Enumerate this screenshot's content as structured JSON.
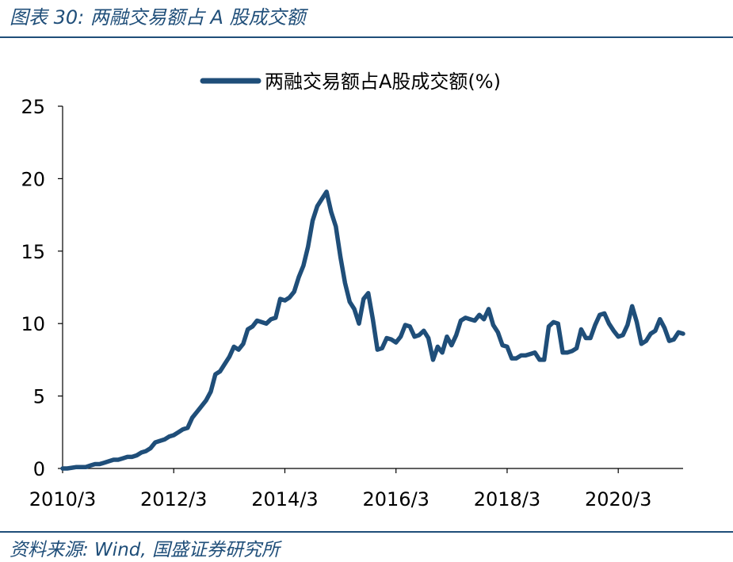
{
  "figure": {
    "title": "图表 30:  两融交易额占 A 股成交额",
    "source": "资料来源:  Wind,  国盛证券研究所"
  },
  "colors": {
    "line": "#1F4E79",
    "accent": "#1F4E79"
  },
  "chart_data": {
    "type": "line",
    "title": "",
    "xlabel": "",
    "ylabel": "",
    "legend_position": "top",
    "grid": false,
    "ylim": [
      0,
      25
    ],
    "yticks": [
      "0",
      "5",
      "10",
      "15",
      "20",
      "25"
    ],
    "xticks": [
      "2010/3",
      "2012/3",
      "2014/3",
      "2016/3",
      "2018/3",
      "2020/3"
    ],
    "series": [
      {
        "name": "两融交易额占A股成交额(%)",
        "x": [
          "2010/3",
          "2010/4",
          "2010/5",
          "2010/6",
          "2010/7",
          "2010/8",
          "2010/9",
          "2010/10",
          "2010/11",
          "2010/12",
          "2011/1",
          "2011/2",
          "2011/3",
          "2011/4",
          "2011/5",
          "2011/6",
          "2011/7",
          "2011/8",
          "2011/9",
          "2011/10",
          "2011/11",
          "2011/12",
          "2012/1",
          "2012/2",
          "2012/3",
          "2012/4",
          "2012/5",
          "2012/6",
          "2012/7",
          "2012/8",
          "2012/9",
          "2012/10",
          "2012/11",
          "2012/12",
          "2013/1",
          "2013/2",
          "2013/3",
          "2013/4",
          "2013/5",
          "2013/6",
          "2013/7",
          "2013/8",
          "2013/9",
          "2013/10",
          "2013/11",
          "2013/12",
          "2014/1",
          "2014/2",
          "2014/3",
          "2014/4",
          "2014/5",
          "2014/6",
          "2014/7",
          "2014/8",
          "2014/9",
          "2014/10",
          "2014/11",
          "2014/12",
          "2015/1",
          "2015/2",
          "2015/3",
          "2015/4",
          "2015/5",
          "2015/6",
          "2015/7",
          "2015/8",
          "2015/9",
          "2015/10",
          "2015/11",
          "2015/12",
          "2016/1",
          "2016/2",
          "2016/3",
          "2016/4",
          "2016/5",
          "2016/6",
          "2016/7",
          "2016/8",
          "2016/9",
          "2016/10",
          "2016/11",
          "2016/12",
          "2017/1",
          "2017/2",
          "2017/3",
          "2017/4",
          "2017/5",
          "2017/6",
          "2017/7",
          "2017/8",
          "2017/9",
          "2017/10",
          "2017/11",
          "2017/12",
          "2018/1",
          "2018/2",
          "2018/3",
          "2018/4",
          "2018/5",
          "2018/6",
          "2018/7",
          "2018/8",
          "2018/9",
          "2018/10",
          "2018/11",
          "2018/12",
          "2019/1",
          "2019/2",
          "2019/3",
          "2019/4",
          "2019/5",
          "2019/6",
          "2019/7",
          "2019/8",
          "2019/9",
          "2019/10",
          "2019/11",
          "2019/12",
          "2020/1",
          "2020/2",
          "2020/3",
          "2020/4",
          "2020/5",
          "2020/6",
          "2020/7",
          "2020/8",
          "2020/9",
          "2020/10",
          "2020/11",
          "2020/12",
          "2021/1",
          "2021/2",
          "2021/3",
          "2021/4",
          "2021/5"
        ],
        "values": [
          0.0,
          0.0,
          0.05,
          0.1,
          0.1,
          0.1,
          0.2,
          0.3,
          0.3,
          0.4,
          0.5,
          0.6,
          0.6,
          0.7,
          0.8,
          0.8,
          0.9,
          1.1,
          1.2,
          1.4,
          1.8,
          1.9,
          2.0,
          2.2,
          2.3,
          2.5,
          2.7,
          2.8,
          3.5,
          3.9,
          4.3,
          4.7,
          5.3,
          6.5,
          6.7,
          7.2,
          7.7,
          8.4,
          8.2,
          8.6,
          9.6,
          9.8,
          10.2,
          10.1,
          10.0,
          10.3,
          10.4,
          11.7,
          11.6,
          11.8,
          12.2,
          13.2,
          14.0,
          15.3,
          17.1,
          18.1,
          18.6,
          19.1,
          17.7,
          16.7,
          14.6,
          12.8,
          11.5,
          11.0,
          10.0,
          11.7,
          12.1,
          10.3,
          8.2,
          8.3,
          9.0,
          8.9,
          8.7,
          9.1,
          9.9,
          9.8,
          9.1,
          9.2,
          9.5,
          9.0,
          7.5,
          8.4,
          8.0,
          9.1,
          8.5,
          9.2,
          10.2,
          10.4,
          10.3,
          10.2,
          10.6,
          10.3,
          11.0,
          9.9,
          9.4,
          8.5,
          8.4,
          7.6,
          7.6,
          7.8,
          7.8,
          7.9,
          8.0,
          7.5,
          7.5,
          9.8,
          10.1,
          10.0,
          8.0,
          8.0,
          8.1,
          8.3,
          9.6,
          9.0,
          9.0,
          9.9,
          10.6,
          10.7,
          10.0,
          9.5,
          9.1,
          9.2,
          9.9,
          11.2,
          10.1,
          8.6,
          8.8,
          9.3,
          9.5,
          10.3,
          9.7,
          8.8,
          8.9,
          9.4,
          9.3
        ]
      }
    ]
  }
}
